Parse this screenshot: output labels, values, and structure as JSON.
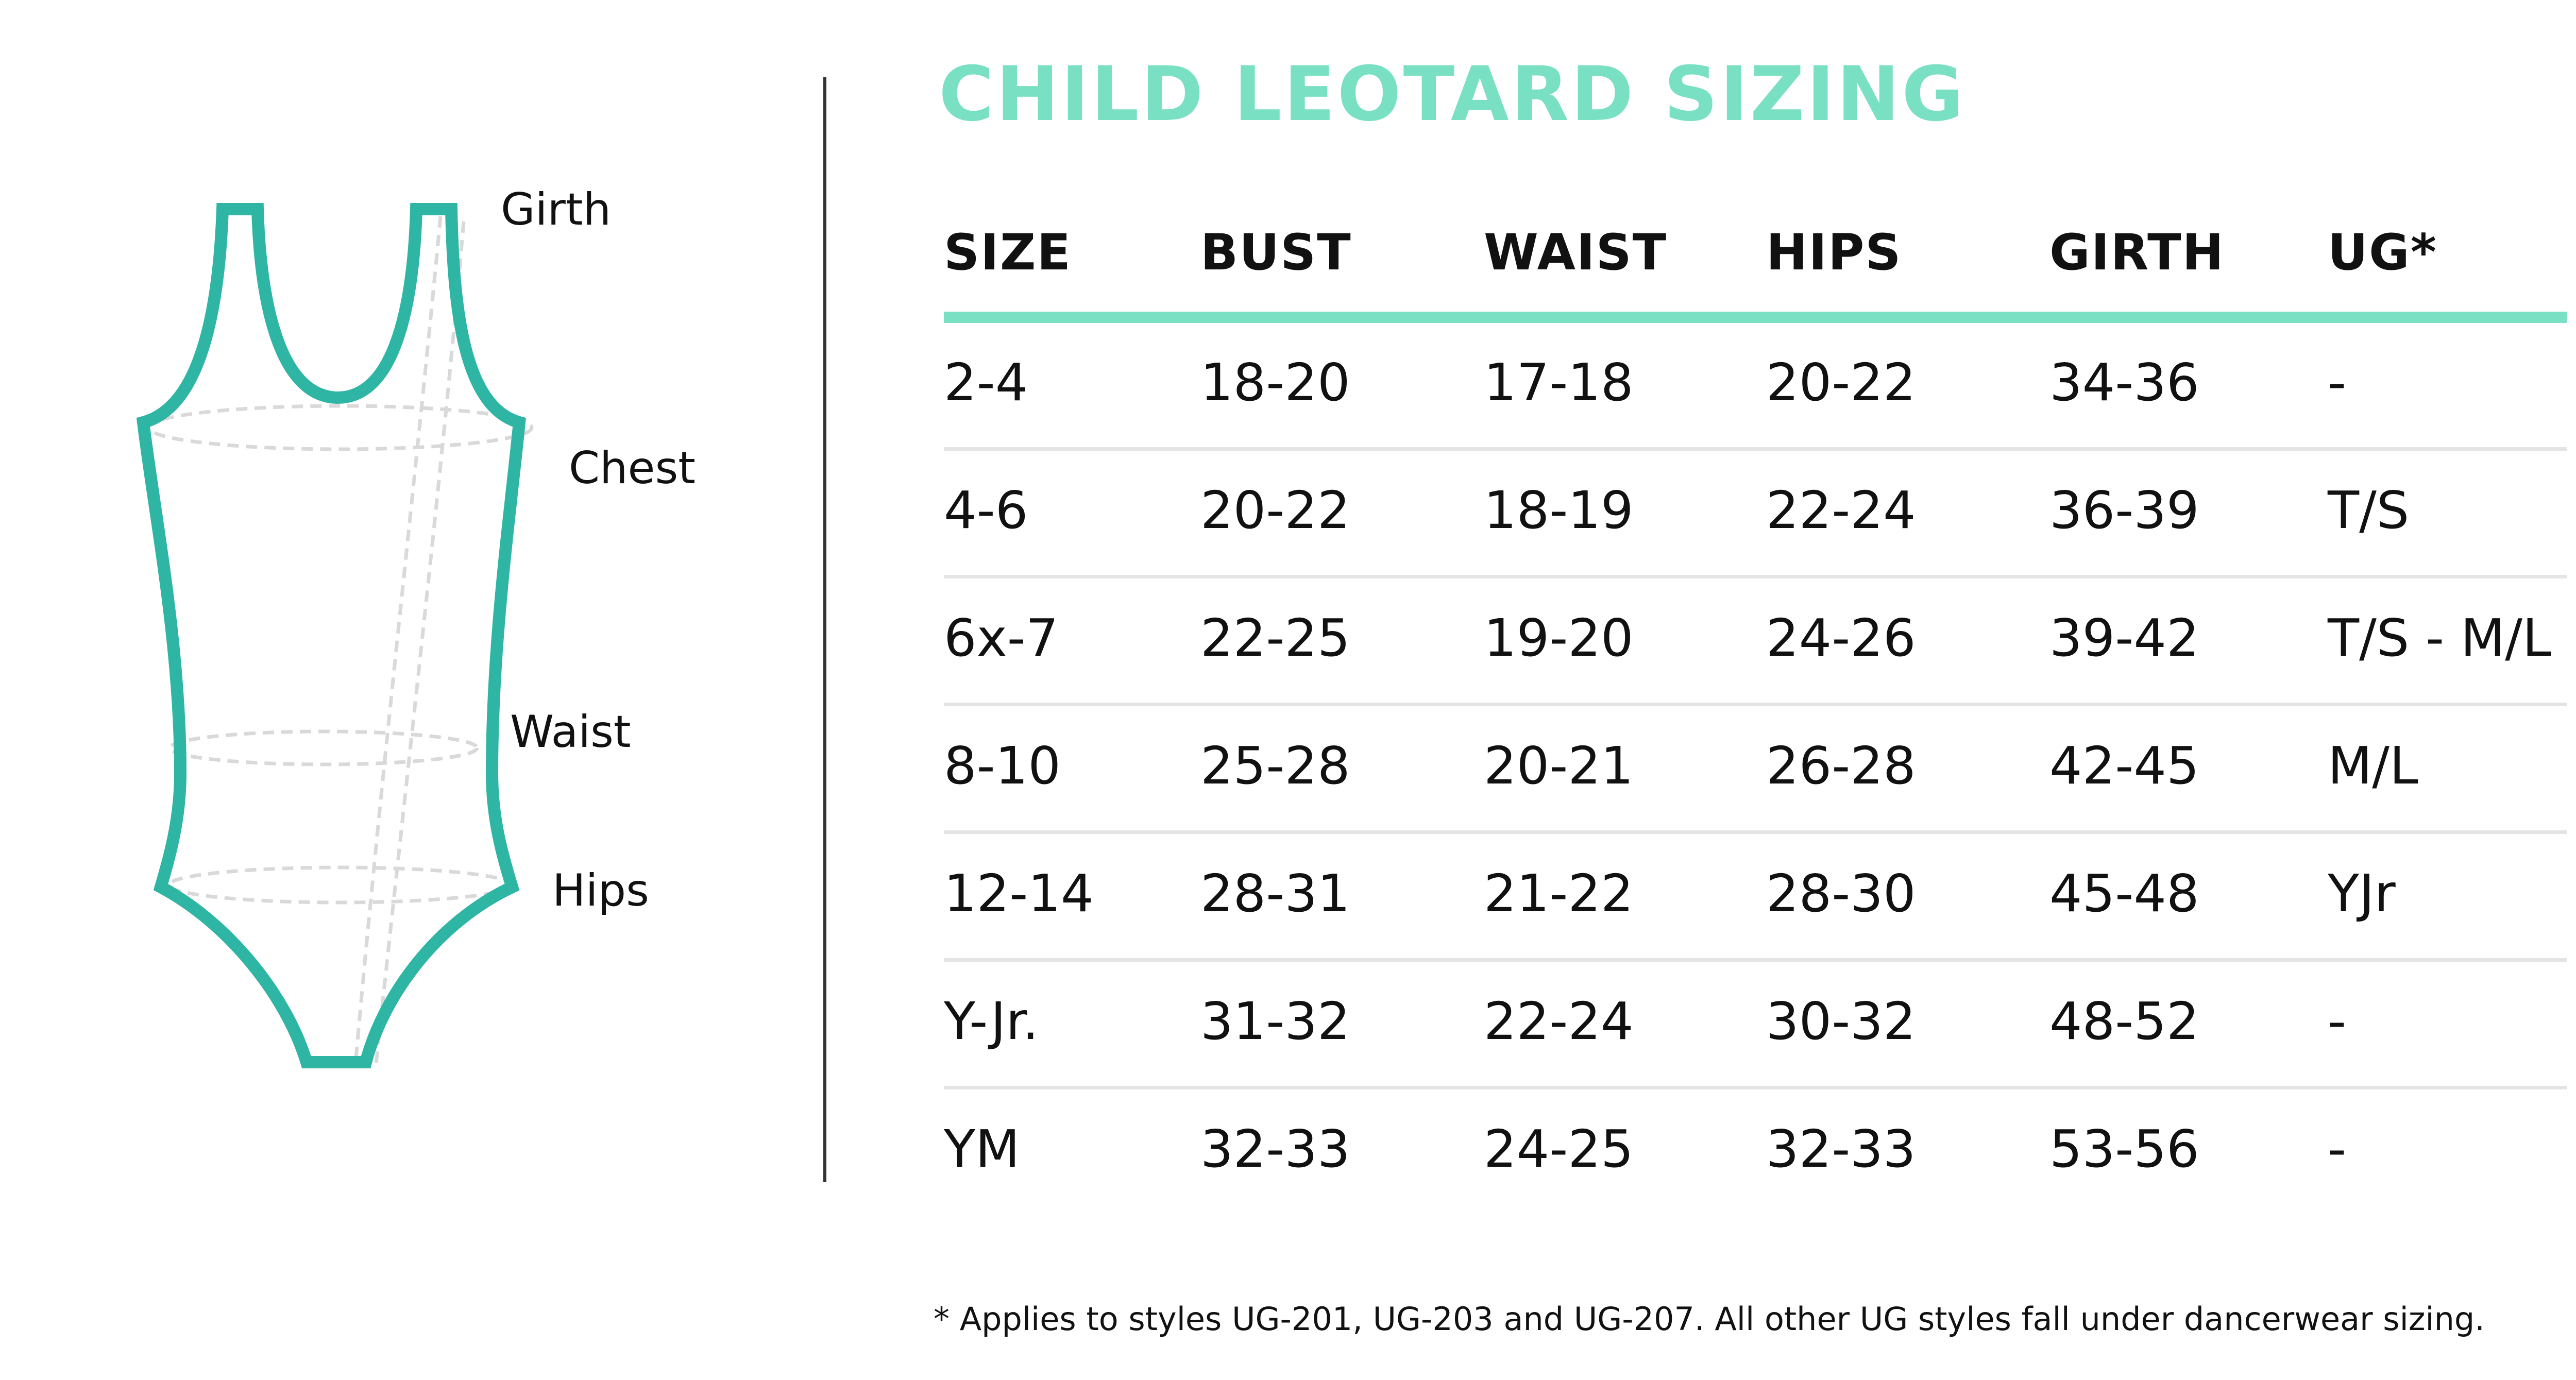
{
  "figure": {
    "labels": {
      "girth": "Girth",
      "chest": "Chest",
      "waist": "Waist",
      "hips": "Hips"
    },
    "outline_color": "#2fb5a3",
    "guide_color": "#d9d9d9"
  },
  "title": "CHILD LEOTARD SIZING",
  "accent_color": "#7ae0c3",
  "table": {
    "headers": [
      "SIZE",
      "BUST",
      "WAIST",
      "HIPS",
      "GIRTH",
      "UG*"
    ],
    "rows": [
      [
        "2-4",
        "18-20",
        "17-18",
        "20-22",
        "34-36",
        "-"
      ],
      [
        "4-6",
        "20-22",
        "18-19",
        "22-24",
        "36-39",
        "T/S"
      ],
      [
        "6x-7",
        "22-25",
        "19-20",
        "24-26",
        "39-42",
        "T/S - M/L"
      ],
      [
        "8-10",
        "25-28",
        "20-21",
        "26-28",
        "42-45",
        "M/L"
      ],
      [
        "12-14",
        "28-31",
        "21-22",
        "28-30",
        "45-48",
        "YJr"
      ],
      [
        "Y-Jr.",
        "31-32",
        "22-24",
        "30-32",
        "48-52",
        "-"
      ],
      [
        "YM",
        "32-33",
        "24-25",
        "32-33",
        "53-56",
        "-"
      ]
    ]
  },
  "footnote": "* Applies to styles UG-201, UG-203 and UG-207. All other UG styles fall under dancerwear sizing."
}
